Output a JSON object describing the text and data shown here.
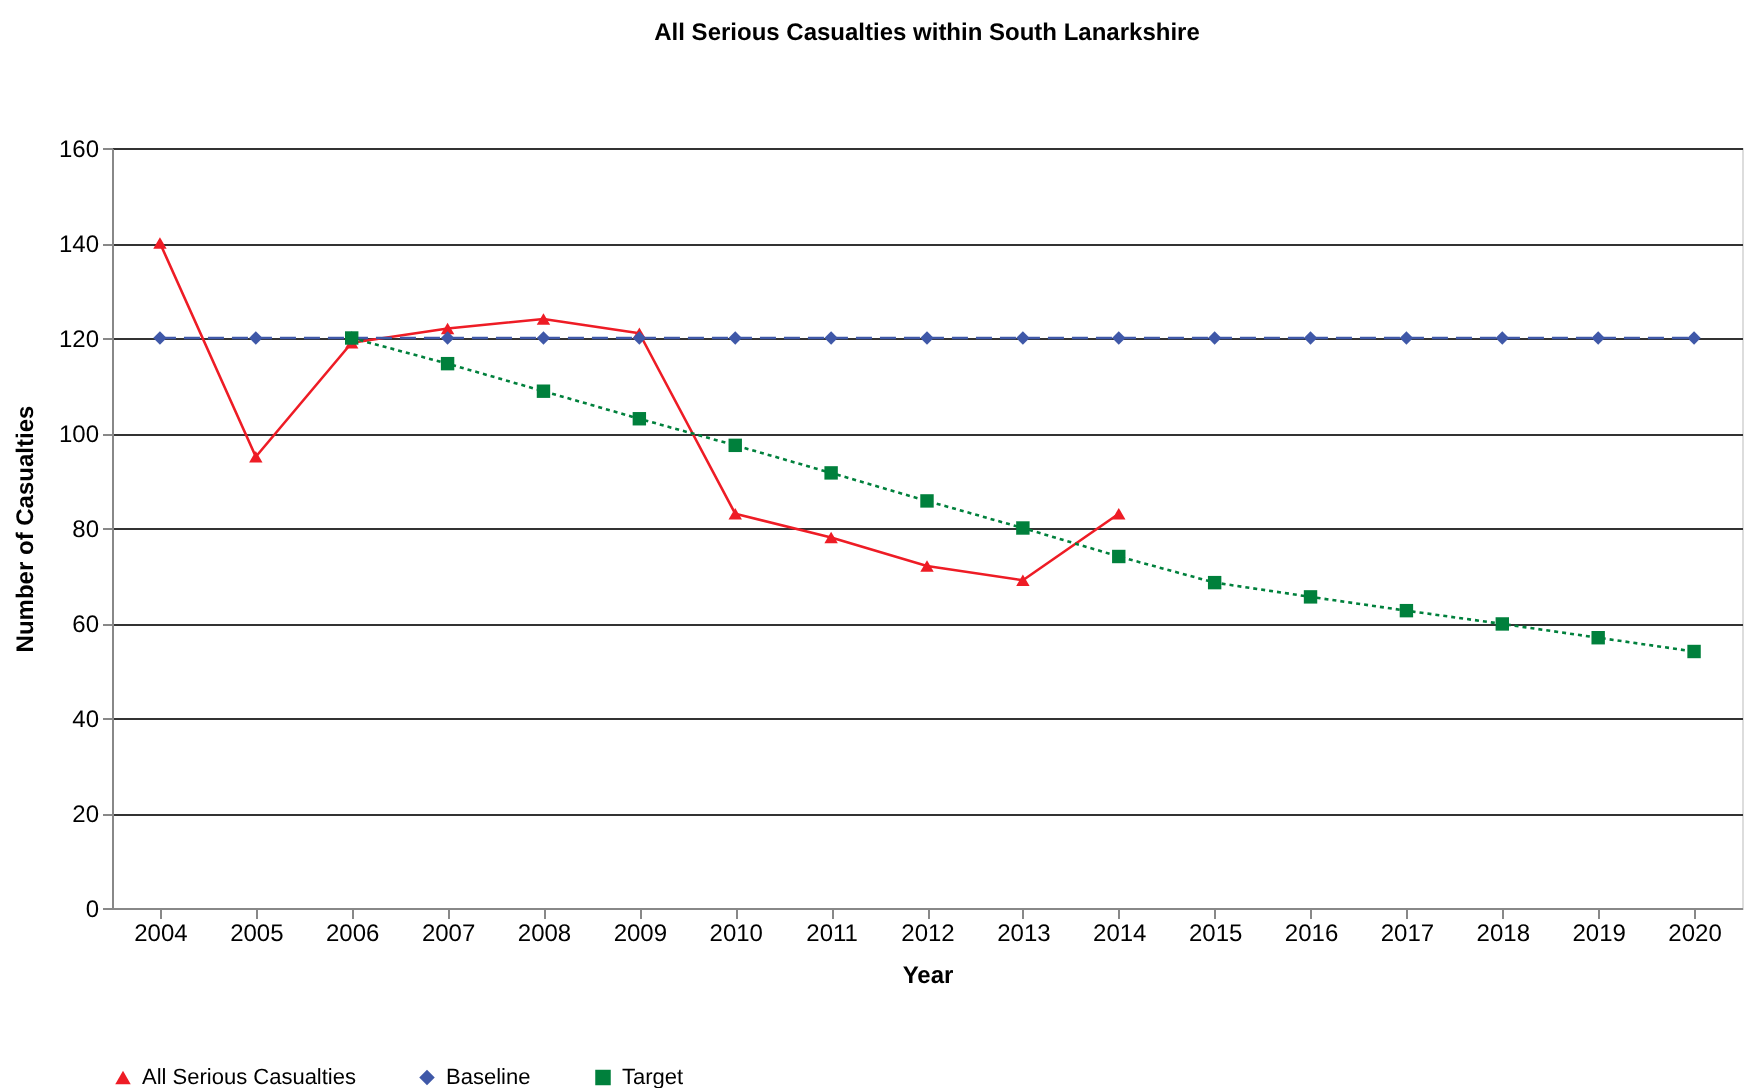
{
  "chart_data": {
    "type": "line",
    "title": "All Serious Casualties within South Lanarkshire",
    "xlabel": "Year",
    "ylabel": "Number of Casualties",
    "categories": [
      "2004",
      "2005",
      "2006",
      "2007",
      "2008",
      "2009",
      "2010",
      "2011",
      "2012",
      "2013",
      "2014",
      "2015",
      "2016",
      "2017",
      "2018",
      "2019",
      "2020"
    ],
    "series": [
      {
        "name": "All Serious Casualties",
        "color": "#ee1c25",
        "marker": "triangle",
        "line_style": "solid",
        "values": [
          140,
          95,
          119,
          122,
          124,
          121,
          83,
          78,
          72,
          69,
          83,
          null,
          null,
          null,
          null,
          null,
          null
        ]
      },
      {
        "name": "Baseline",
        "color": "#3f58a8",
        "marker": "diamond",
        "line_style": "dashed",
        "values": [
          120,
          120,
          120,
          120,
          120,
          120,
          120,
          120,
          120,
          120,
          120,
          120,
          120,
          120,
          120,
          120,
          120
        ]
      },
      {
        "name": "Target",
        "color": "#00803c",
        "marker": "square",
        "line_style": "dotted",
        "values": [
          null,
          null,
          120,
          114.6,
          108.8,
          103,
          97.4,
          91.6,
          85.7,
          80,
          74,
          68.5,
          65.5,
          62.6,
          59.8,
          56.9,
          54
        ]
      }
    ],
    "ylim": [
      0,
      160
    ],
    "yticks": [
      0,
      20,
      40,
      60,
      80,
      100,
      120,
      140,
      160
    ],
    "grid": "y",
    "legend": "bottom"
  }
}
